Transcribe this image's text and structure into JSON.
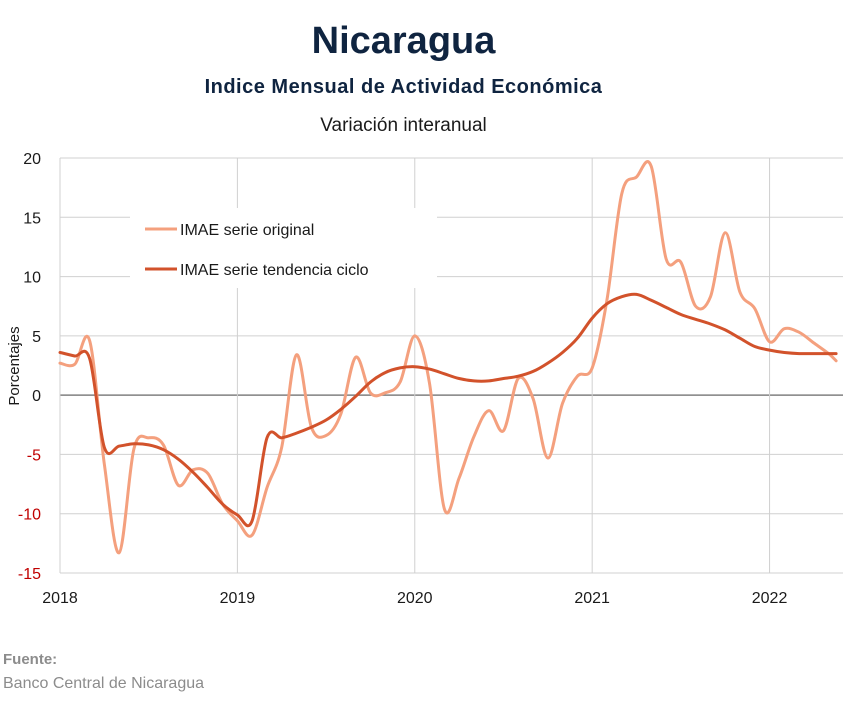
{
  "header": {
    "title": "Nicaragua",
    "subtitle": "Indice Mensual de  Actividad Económica",
    "note": "Variación interanual"
  },
  "source": {
    "label": "Fuente:",
    "text": "Banco Central de Nicaragua"
  },
  "colors": {
    "original": "#f4a07e",
    "trend": "#d2522b",
    "negative_tick": "#c00000",
    "grid": "#d0d0d0",
    "zero_line": "#808080"
  },
  "chart_data": {
    "type": "line",
    "title": "Indice Mensual de  Actividad Económica",
    "ylabel": "Porcentajes",
    "xlabel": "",
    "ylim": [
      -15,
      20
    ],
    "yticks": [
      20,
      15,
      10,
      5,
      0,
      -5,
      -10,
      -15
    ],
    "ytick_labels": [
      "20",
      "15",
      "10",
      "5",
      "0",
      "-5",
      "-10",
      "-15"
    ],
    "xticks": [
      2018,
      2019,
      2020,
      2021,
      2022
    ],
    "xtick_labels": [
      "2018",
      "2019",
      "2020",
      "2021",
      "2022"
    ],
    "grid": true,
    "legend_position": "top-left",
    "x": [
      2018.0,
      2018.083,
      2018.167,
      2018.25,
      2018.333,
      2018.417,
      2018.5,
      2018.583,
      2018.667,
      2018.75,
      2018.833,
      2018.917,
      2019.0,
      2019.083,
      2019.167,
      2019.25,
      2019.333,
      2019.417,
      2019.5,
      2019.583,
      2019.667,
      2019.75,
      2019.833,
      2019.917,
      2020.0,
      2020.083,
      2020.167,
      2020.25,
      2020.333,
      2020.417,
      2020.5,
      2020.583,
      2020.667,
      2020.75,
      2020.833,
      2020.917,
      2021.0,
      2021.083,
      2021.167,
      2021.25,
      2021.333,
      2021.417,
      2021.5,
      2021.583,
      2021.667,
      2021.75,
      2021.833,
      2021.917,
      2022.0,
      2022.083,
      2022.167,
      2022.25,
      2022.333,
      2022.375
    ],
    "series": [
      {
        "name": "IMAE serie original",
        "values": [
          2.7,
          2.6,
          4.6,
          -5.8,
          -13.3,
          -4.5,
          -3.6,
          -4.2,
          -7.6,
          -6.3,
          -6.6,
          -9.2,
          -10.6,
          -11.8,
          -7.8,
          -4.4,
          3.4,
          -2.7,
          -3.4,
          -1.6,
          3.2,
          0.2,
          0.2,
          1.1,
          5.0,
          1.0,
          -9.6,
          -7.0,
          -3.5,
          -1.3,
          -3.0,
          1.4,
          -0.3,
          -5.3,
          -0.7,
          1.6,
          2.3,
          8.0,
          17.0,
          18.4,
          19.3,
          11.5,
          11.2,
          7.5,
          8.3,
          13.7,
          8.7,
          7.3,
          4.5,
          5.6,
          5.3,
          4.4,
          3.5,
          2.9
        ]
      },
      {
        "name": "IMAE serie  tendencia ciclo",
        "values": [
          3.6,
          3.3,
          3.1,
          -4.4,
          -4.3,
          -4.1,
          -4.2,
          -4.6,
          -5.4,
          -6.5,
          -7.8,
          -9.2,
          -10.1,
          -10.6,
          -3.6,
          -3.6,
          -3.2,
          -2.7,
          -2.1,
          -1.2,
          -0.1,
          1.1,
          1.9,
          2.3,
          2.4,
          2.2,
          1.8,
          1.4,
          1.2,
          1.2,
          1.4,
          1.6,
          2.0,
          2.7,
          3.6,
          4.8,
          6.5,
          7.7,
          8.3,
          8.5,
          8.0,
          7.4,
          6.8,
          6.4,
          6.0,
          5.5,
          4.8,
          4.1,
          3.8,
          3.6,
          3.5,
          3.5,
          3.5,
          3.5
        ]
      }
    ]
  }
}
